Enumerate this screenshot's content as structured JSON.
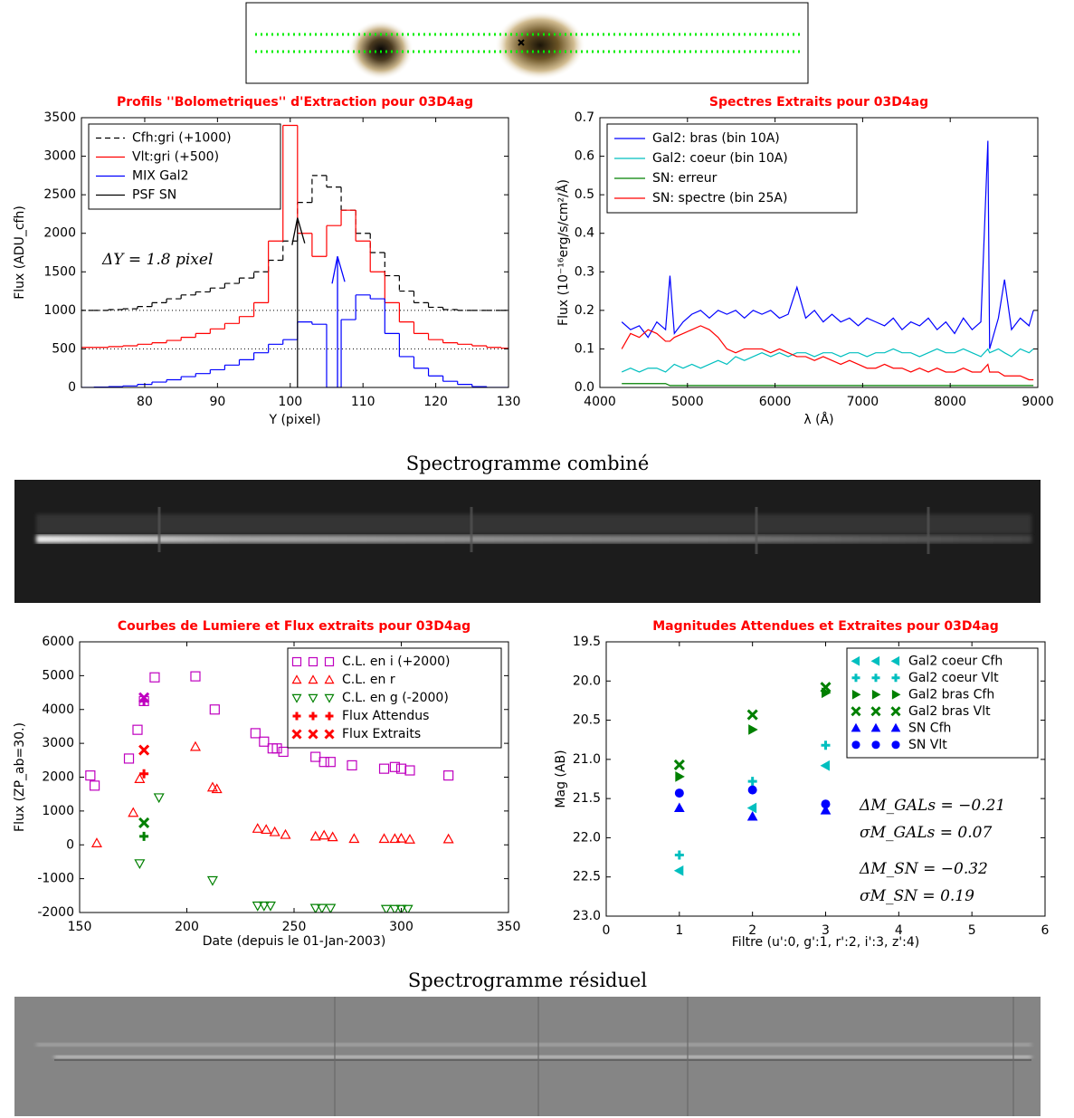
{
  "captions": [
    "Spectrogramme combiné",
    "Spectrogramme résiduel"
  ],
  "chart_data": [
    {
      "type": "line",
      "step": true,
      "title": "Profils ''Bolometriques'' d'Extraction pour 03D4ag",
      "x_label": "Y (pixel)",
      "y_label": "Flux (ADU_cfh)",
      "xlim": [
        71.3,
        130
      ],
      "xticks": [
        80,
        90,
        100,
        110,
        120,
        130
      ],
      "ylim": [
        0,
        3500
      ],
      "yticks": [
        0,
        500,
        1000,
        1500,
        2000,
        2500,
        3000,
        3500
      ],
      "legend": "upper left",
      "hlines": [
        1000,
        500
      ],
      "annotations": [
        "ΔY = 1.8 pixel"
      ],
      "arrows": [
        {
          "x": 106.5,
          "y0": 0,
          "y1": 1700,
          "color": "#0000ff"
        }
      ],
      "x": [
        72,
        74,
        76,
        78,
        80,
        82,
        84,
        86,
        88,
        90,
        92,
        94,
        96,
        98,
        100,
        102,
        104,
        106,
        108,
        110,
        112,
        114,
        116,
        118,
        120,
        122,
        124,
        126,
        128,
        130
      ],
      "series": [
        {
          "name": "Cfh:gri (+1000)",
          "color": "#000000",
          "dash": true,
          "values": [
            1000,
            1000,
            1010,
            1020,
            1050,
            1100,
            1150,
            1200,
            1240,
            1290,
            1350,
            1420,
            1500,
            1650,
            1900,
            2400,
            2750,
            2600,
            2300,
            2000,
            1750,
            1450,
            1250,
            1100,
            1040,
            1010,
            1000,
            1000,
            1000,
            1000
          ]
        },
        {
          "name": "Vlt:gri (+500)",
          "color": "#ff0000",
          "values": [
            520,
            520,
            530,
            540,
            560,
            580,
            610,
            650,
            700,
            760,
            830,
            920,
            1100,
            1900,
            3400,
            2000,
            1700,
            2100,
            2300,
            1900,
            1500,
            1100,
            850,
            700,
            620,
            580,
            560,
            540,
            520,
            510
          ]
        },
        {
          "name": "MIX Gal2",
          "color": "#0000ff",
          "values": [
            0,
            5,
            10,
            20,
            40,
            70,
            100,
            140,
            180,
            230,
            290,
            360,
            450,
            560,
            620,
            850,
            820,
            0,
            880,
            1200,
            1150,
            700,
            400,
            250,
            150,
            80,
            40,
            10,
            0,
            0
          ]
        },
        {
          "name": "PSF SN",
          "color": "#000000",
          "x": [
            101,
            101
          ],
          "values": [
            0,
            2200
          ]
        }
      ]
    },
    {
      "type": "line",
      "title": "Spectres Extraits pour 03D4ag",
      "x_label": "λ (Å)",
      "y_label": "Flux (10⁻¹⁶erg/s/cm²/Å)",
      "xlim": [
        4000,
        9000
      ],
      "xticks": [
        4000,
        5000,
        6000,
        7000,
        8000,
        9000
      ],
      "ylim": [
        0,
        0.7
      ],
      "yticks": [
        {
          "value": 0,
          "label": "0.0"
        },
        0.1,
        0.2,
        0.3,
        0.4,
        0.5,
        0.6,
        0.7
      ],
      "legend": "upper left",
      "x": [
        4250,
        4350,
        4450,
        4550,
        4650,
        4750,
        4800,
        4850,
        4950,
        5050,
        5150,
        5250,
        5350,
        5450,
        5550,
        5650,
        5750,
        5850,
        5950,
        6050,
        6150,
        6250,
        6350,
        6450,
        6550,
        6650,
        6750,
        6850,
        6950,
        7050,
        7150,
        7250,
        7350,
        7450,
        7550,
        7650,
        7750,
        7850,
        7950,
        8050,
        8150,
        8250,
        8350,
        8430,
        8450,
        8550,
        8620,
        8700,
        8800,
        8900,
        8950
      ],
      "series": [
        {
          "name": "Gal2: bras (bin 10A)",
          "color": "#0000ff",
          "values": [
            0.17,
            0.15,
            0.16,
            0.13,
            0.17,
            0.15,
            0.29,
            0.14,
            0.17,
            0.19,
            0.2,
            0.18,
            0.2,
            0.19,
            0.2,
            0.18,
            0.2,
            0.19,
            0.2,
            0.18,
            0.19,
            0.26,
            0.18,
            0.2,
            0.17,
            0.19,
            0.17,
            0.18,
            0.16,
            0.18,
            0.17,
            0.16,
            0.18,
            0.15,
            0.17,
            0.16,
            0.18,
            0.15,
            0.17,
            0.14,
            0.18,
            0.15,
            0.17,
            0.64,
            0.1,
            0.18,
            0.28,
            0.15,
            0.18,
            0.16,
            0.2
          ]
        },
        {
          "name": "Gal2: coeur (bin 10A)",
          "color": "#00bfbf",
          "values": [
            0.04,
            0.05,
            0.04,
            0.05,
            0.05,
            0.04,
            0.05,
            0.06,
            0.05,
            0.06,
            0.05,
            0.06,
            0.07,
            0.06,
            0.08,
            0.07,
            0.08,
            0.09,
            0.08,
            0.09,
            0.08,
            0.09,
            0.09,
            0.08,
            0.09,
            0.09,
            0.08,
            0.09,
            0.09,
            0.08,
            0.09,
            0.09,
            0.1,
            0.09,
            0.09,
            0.08,
            0.09,
            0.1,
            0.09,
            0.09,
            0.1,
            0.09,
            0.08,
            0.1,
            0.09,
            0.1,
            0.09,
            0.08,
            0.1,
            0.09,
            0.1
          ]
        },
        {
          "name": "SN: erreur",
          "color": "#008000",
          "values": [
            0.01,
            0.01,
            0.01,
            0.01,
            0.01,
            0.01,
            0.005,
            0.005,
            0.005,
            0.005,
            0.005,
            0.005,
            0.005,
            0.005,
            0.005,
            0.005,
            0.005,
            0.005,
            0.005,
            0.005,
            0.005,
            0.005,
            0.005,
            0.005,
            0.005,
            0.005,
            0.005,
            0.005,
            0.005,
            0.005,
            0.005,
            0.005,
            0.005,
            0.005,
            0.005,
            0.005,
            0.005,
            0.005,
            0.005,
            0.005,
            0.005,
            0.005,
            0.005,
            0.005,
            0.005,
            0.005,
            0.005,
            0.005,
            0.005,
            0.005,
            0.005
          ]
        },
        {
          "name": "SN: spectre (bin 25A)",
          "color": "#ff0000",
          "values": [
            0.1,
            0.14,
            0.13,
            0.15,
            0.14,
            0.12,
            0.12,
            0.13,
            0.14,
            0.15,
            0.16,
            0.15,
            0.13,
            0.1,
            0.09,
            0.1,
            0.1,
            0.1,
            0.09,
            0.1,
            0.09,
            0.08,
            0.08,
            0.07,
            0.08,
            0.07,
            0.06,
            0.07,
            0.06,
            0.05,
            0.05,
            0.06,
            0.05,
            0.05,
            0.04,
            0.05,
            0.04,
            0.05,
            0.04,
            0.04,
            0.05,
            0.04,
            0.04,
            0.06,
            0.04,
            0.04,
            0.03,
            0.03,
            0.03,
            0.02,
            0.02
          ]
        }
      ]
    },
    {
      "type": "scatter",
      "hollow": true,
      "title": "Courbes de Lumiere et Flux extraits pour 03D4ag",
      "x_label": "Date (depuis le 01-Jan-2003)",
      "y_label": "Flux (ZP_ab=30.)",
      "xlim": [
        150,
        350
      ],
      "xticks": [
        150,
        200,
        250,
        300,
        350
      ],
      "ylim": [
        -2000,
        6000
      ],
      "yticks": [
        -2000,
        -1000,
        0,
        1000,
        2000,
        3000,
        4000,
        5000,
        6000
      ],
      "legend": "upper right",
      "series": [
        {
          "name": "C.L. en i (+2000)",
          "color": "#bf00bf",
          "marker": "square",
          "x": [
            155,
            157,
            173,
            177,
            180,
            185,
            204,
            213,
            232,
            236,
            240,
            242,
            245,
            260,
            264,
            267,
            277,
            292,
            297,
            300,
            304,
            322
          ],
          "values": [
            2050,
            1750,
            2550,
            3400,
            4250,
            4950,
            4980,
            4000,
            3300,
            3050,
            2850,
            2850,
            2750,
            2600,
            2450,
            2450,
            2350,
            2250,
            2300,
            2250,
            2200,
            2050
          ]
        },
        {
          "name": "C.L. en r",
          "color": "#ff0000",
          "marker": "triangle-up",
          "x": [
            158,
            175,
            178,
            204,
            212,
            214,
            233,
            237,
            241,
            246,
            260,
            264,
            268,
            278,
            292,
            297,
            300,
            304,
            322
          ],
          "values": [
            50,
            950,
            1950,
            2900,
            1700,
            1650,
            480,
            450,
            380,
            300,
            250,
            280,
            230,
            180,
            180,
            180,
            190,
            160,
            170
          ]
        },
        {
          "name": "C.L. en g (-2000)",
          "color": "#008000",
          "marker": "triangle-down",
          "x": [
            178,
            187,
            212,
            233,
            236,
            239,
            260,
            263,
            267,
            293,
            297,
            300,
            303
          ],
          "values": [
            -550,
            1400,
            -1050,
            -1800,
            -1800,
            -1800,
            -1870,
            -1870,
            -1870,
            -1900,
            -1900,
            -1900,
            -1900
          ]
        },
        {
          "name": "Flux Attendus",
          "color": "#ff0000",
          "marker": "plus",
          "x": [
            180,
            180,
            180
          ],
          "values": [
            250,
            2100,
            4250
          ],
          "colors": [
            "#008000",
            "#ff0000",
            "#bf00bf"
          ]
        },
        {
          "name": "Flux Extraits",
          "color": "#ff0000",
          "marker": "x",
          "x": [
            180,
            180,
            180
          ],
          "values": [
            650,
            2800,
            4350
          ],
          "colors": [
            "#008000",
            "#ff0000",
            "#bf00bf"
          ]
        }
      ]
    },
    {
      "type": "scatter",
      "title": "Magnitudes Attendues et Extraites pour 03D4ag",
      "x_label": "Filtre (u':0, g':1, r':2, i':3, z':4)",
      "y_label": "Mag (AB)",
      "xlim": [
        0,
        6
      ],
      "xticks": [
        0,
        1,
        2,
        3,
        4,
        5,
        6
      ],
      "ylim": [
        23,
        19.5
      ],
      "yticks": [
        19.5,
        {
          "value": 20,
          "label": "20.0"
        },
        20.5,
        {
          "value": 21,
          "label": "21.0"
        },
        21.5,
        {
          "value": 22,
          "label": "22.0"
        },
        22.5,
        {
          "value": 23,
          "label": "23.0"
        }
      ],
      "legend": "upper right",
      "annotations": [
        "ΔM_GALs = −0.21",
        "σM_GALs = 0.07",
        "ΔM_SN = −0.32",
        "σM_SN = 0.19"
      ],
      "series": [
        {
          "name": "Gal2 coeur Cfh",
          "color": "#00bfbf",
          "marker": "triangle-left",
          "x": [
            1,
            2,
            3
          ],
          "values": [
            22.42,
            21.62,
            21.08
          ]
        },
        {
          "name": "Gal2 coeur Vlt",
          "color": "#00bfbf",
          "marker": "plus",
          "x": [
            1,
            2,
            3
          ],
          "values": [
            22.22,
            21.28,
            20.82
          ]
        },
        {
          "name": "Gal2 bras Cfh",
          "color": "#008000",
          "marker": "triangle-right",
          "x": [
            1,
            2,
            3
          ],
          "values": [
            21.22,
            20.62,
            20.15
          ]
        },
        {
          "name": "Gal2 bras Vlt",
          "color": "#008000",
          "marker": "x",
          "x": [
            1,
            2,
            3
          ],
          "values": [
            21.07,
            20.43,
            20.08
          ]
        },
        {
          "name": "SN Cfh",
          "color": "#0000ff",
          "marker": "triangle-up",
          "x": [
            1,
            2,
            3
          ],
          "values": [
            21.62,
            21.73,
            21.65
          ]
        },
        {
          "name": "SN Vlt",
          "color": "#0000ff",
          "marker": "circle",
          "x": [
            1,
            2,
            3
          ],
          "values": [
            21.43,
            21.39,
            21.57
          ]
        }
      ]
    }
  ]
}
